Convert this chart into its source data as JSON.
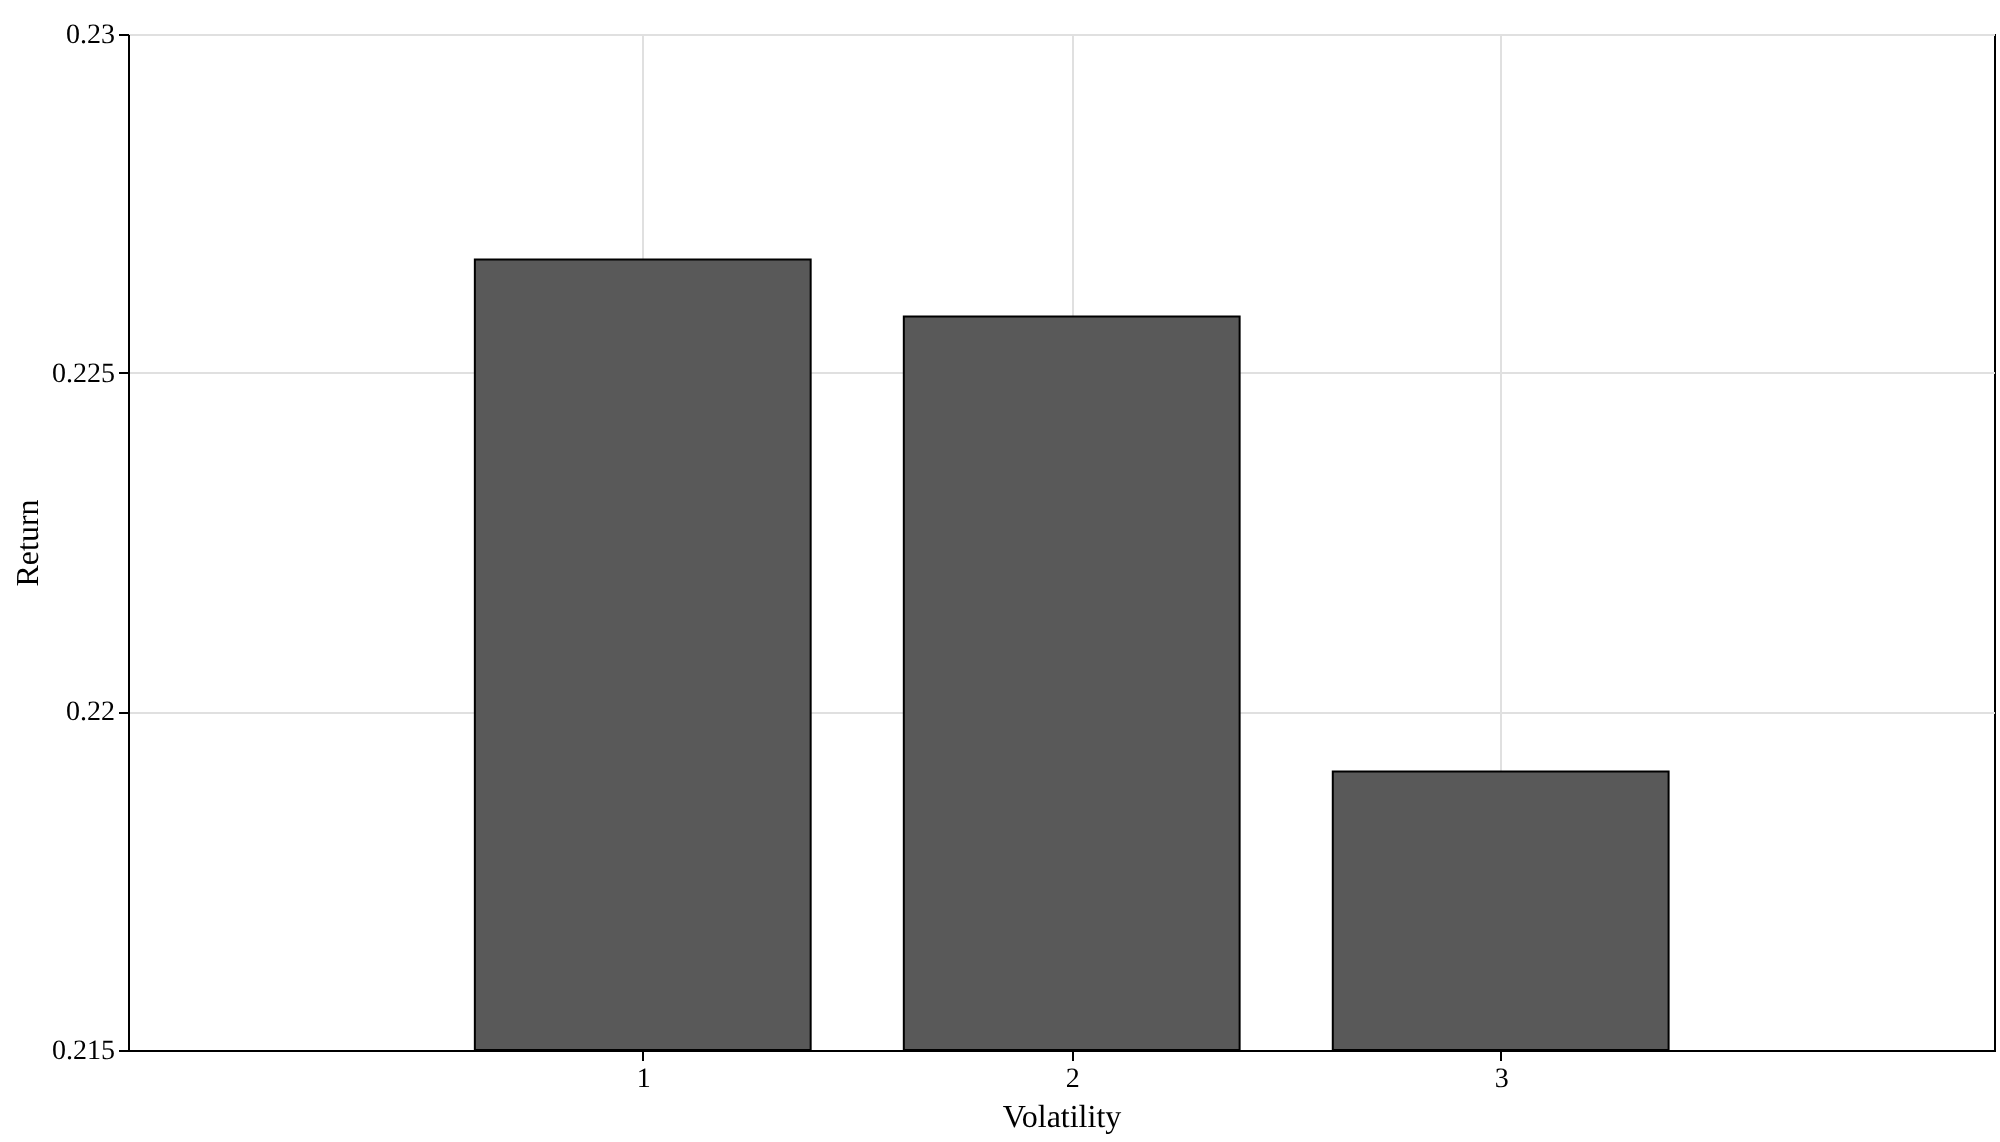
{
  "chart_data": {
    "type": "bar",
    "xlabel": "Volatility",
    "ylabel": "Return",
    "x": [
      1,
      2,
      3
    ],
    "series": [
      {
        "color": "#595959",
        "values": [
          0.22667,
          0.22583,
          0.21911
        ]
      }
    ],
    "xlim": [
      -0.2,
      4.15
    ],
    "xticks": [
      1,
      2,
      3
    ],
    "ylim": [
      0.215,
      0.23
    ],
    "yticks": [
      0.215,
      0.22,
      0.225,
      0.23
    ],
    "grid": true
  }
}
